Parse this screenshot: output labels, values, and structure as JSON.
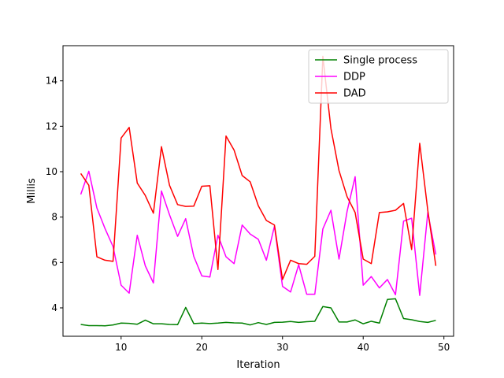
{
  "chart_data": {
    "type": "line",
    "title": "",
    "xlabel": "Iteration",
    "ylabel": "Millis",
    "xlim": [
      2.8,
      51.2
    ],
    "ylim": [
      2.75,
      15.55
    ],
    "xticks": [
      10,
      20,
      30,
      40,
      50
    ],
    "yticks": [
      4,
      6,
      8,
      10,
      12,
      14
    ],
    "xtick_labels": [
      "10",
      "20",
      "30",
      "40",
      "50"
    ],
    "ytick_labels": [
      "4",
      "6",
      "8",
      "10",
      "12",
      "14"
    ],
    "grid": false,
    "legend_position": "top-right",
    "x": [
      5,
      6,
      7,
      8,
      9,
      10,
      11,
      12,
      13,
      14,
      15,
      16,
      17,
      18,
      19,
      20,
      21,
      22,
      23,
      24,
      25,
      26,
      27,
      28,
      29,
      30,
      31,
      32,
      33,
      34,
      35,
      36,
      37,
      38,
      39,
      40,
      41,
      42,
      43,
      44,
      45,
      46,
      47,
      48,
      49
    ],
    "series": [
      {
        "name": "Single process",
        "color": "#008000",
        "values": [
          3.27,
          3.22,
          3.22,
          3.21,
          3.25,
          3.33,
          3.32,
          3.28,
          3.46,
          3.3,
          3.3,
          3.27,
          3.26,
          4.02,
          3.31,
          3.33,
          3.31,
          3.33,
          3.36,
          3.34,
          3.33,
          3.25,
          3.35,
          3.27,
          3.36,
          3.37,
          3.4,
          3.36,
          3.39,
          3.41,
          4.06,
          4.0,
          3.38,
          3.38,
          3.47,
          3.3,
          3.41,
          3.33,
          4.37,
          4.4,
          3.53,
          3.48,
          3.4,
          3.36,
          3.45
        ]
      },
      {
        "name": "DDP",
        "color": "#ff00ff",
        "values": [
          9.0,
          10.02,
          8.4,
          7.5,
          6.7,
          5.0,
          4.65,
          7.2,
          5.85,
          5.1,
          9.15,
          8.1,
          7.15,
          7.93,
          6.27,
          5.41,
          5.36,
          7.2,
          6.25,
          5.95,
          7.65,
          7.25,
          7.02,
          6.1,
          7.6,
          4.95,
          4.7,
          5.9,
          4.6,
          4.6,
          7.48,
          8.3,
          6.15,
          8.25,
          9.78,
          5.0,
          5.38,
          4.88,
          5.25,
          4.58,
          7.82,
          7.95,
          4.55,
          8.2,
          6.35
        ]
      },
      {
        "name": "DAD",
        "color": "#ff0000",
        "values": [
          9.92,
          9.4,
          6.25,
          6.1,
          6.05,
          11.48,
          11.95,
          9.5,
          8.95,
          8.17,
          11.1,
          9.4,
          8.55,
          8.47,
          8.48,
          9.36,
          9.38,
          5.69,
          11.57,
          10.95,
          9.83,
          9.55,
          8.5,
          7.85,
          7.65,
          5.25,
          6.1,
          5.95,
          5.92,
          6.27,
          15.08,
          11.9,
          10.05,
          8.9,
          8.2,
          6.15,
          5.95,
          8.2,
          8.23,
          8.3,
          8.6,
          6.57,
          11.25,
          8.3,
          5.85
        ]
      }
    ]
  }
}
